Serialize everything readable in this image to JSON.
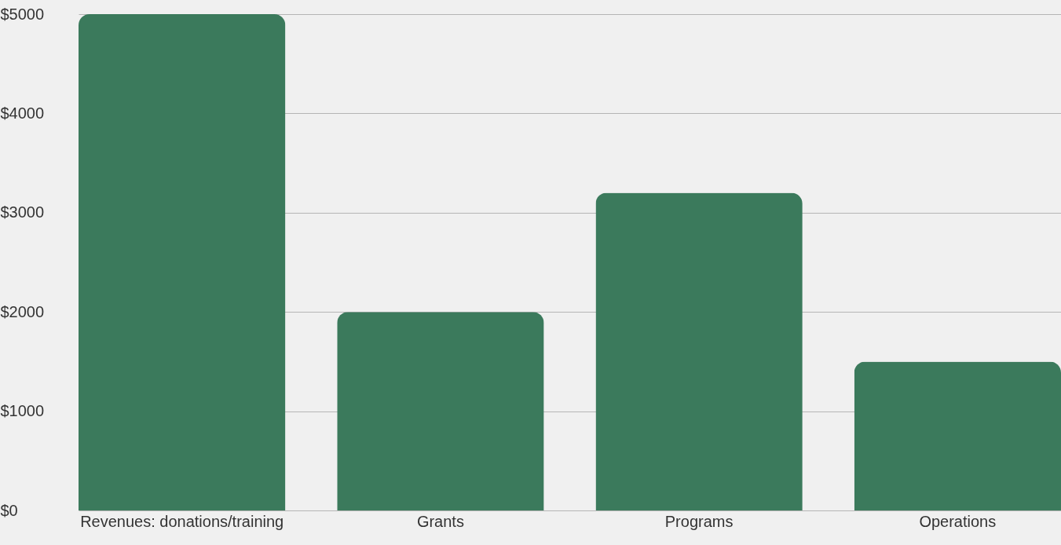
{
  "chart_data": {
    "type": "bar",
    "categories": [
      "Revenues: donations/training",
      "Grants",
      "Programs",
      "Operations"
    ],
    "values": [
      5000,
      2000,
      3200,
      1500
    ],
    "color": "#3b7a5c",
    "ylim": [
      0,
      5000
    ],
    "yticks": [
      {
        "value": 0,
        "label": "$0"
      },
      {
        "value": 1000,
        "label": "$1000"
      },
      {
        "value": 2000,
        "label": "$2000"
      },
      {
        "value": 3000,
        "label": "$3000"
      },
      {
        "value": 4000,
        "label": "$4000"
      },
      {
        "value": 5000,
        "label": "$5000"
      }
    ],
    "grid": "y"
  }
}
